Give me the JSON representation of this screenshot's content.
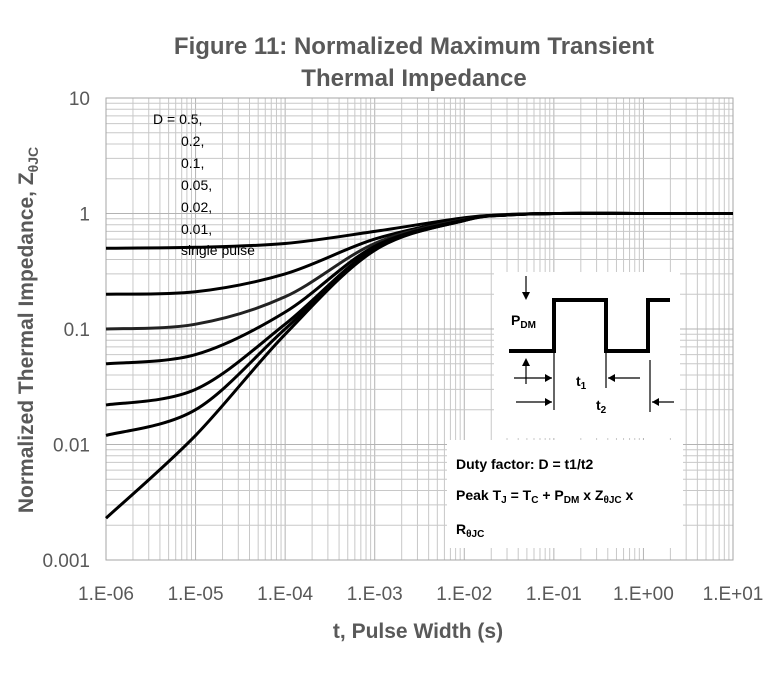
{
  "chart_data": {
    "type": "line",
    "title_line1": "Figure 11: Normalized Maximum Transient",
    "title_line2": "Thermal Impedance",
    "xlabel": "t, Pulse Width (s)",
    "ylabel_main": "Normalized Thermal Impedance, Z",
    "ylabel_sub": "θJC",
    "x_scale": "log",
    "y_scale": "log",
    "xlim": [
      1e-06,
      10
    ],
    "ylim": [
      0.001,
      10
    ],
    "grid": true,
    "x_ticks": [
      {
        "value": 1e-06,
        "label": "1.E-06"
      },
      {
        "value": 1e-05,
        "label": "1.E-05"
      },
      {
        "value": 0.0001,
        "label": "1.E-04"
      },
      {
        "value": 0.001,
        "label": "1.E-03"
      },
      {
        "value": 0.01,
        "label": "1.E-02"
      },
      {
        "value": 0.1,
        "label": "1.E-01"
      },
      {
        "value": 1,
        "label": "1.E+00"
      },
      {
        "value": 10,
        "label": "1.E+01"
      }
    ],
    "y_ticks": [
      {
        "value": 0.001,
        "label": "0.001"
      },
      {
        "value": 0.01,
        "label": "0.01"
      },
      {
        "value": 0.1,
        "label": "0.1"
      },
      {
        "value": 1,
        "label": "1"
      },
      {
        "value": 10,
        "label": "10"
      }
    ],
    "legend": [
      "D = 0.5,",
      "0.2,",
      "0.1,",
      "0.05,",
      "0.02,",
      "0.01,",
      "single pulse"
    ],
    "series": [
      {
        "name": "D = 0.5",
        "color": "#000000",
        "x": [
          1e-06,
          1e-05,
          0.0001,
          0.001,
          0.01,
          0.03,
          0.1,
          1,
          10
        ],
        "y": [
          0.5,
          0.51,
          0.55,
          0.7,
          0.92,
          0.98,
          1.0,
          1.0,
          1.0
        ]
      },
      {
        "name": "D = 0.2",
        "color": "#000000",
        "x": [
          1e-06,
          1e-05,
          0.0001,
          0.001,
          0.01,
          0.03,
          0.1,
          1,
          10
        ],
        "y": [
          0.2,
          0.21,
          0.3,
          0.6,
          0.9,
          0.97,
          1.0,
          1.0,
          1.0
        ]
      },
      {
        "name": "D = 0.1",
        "color": "#222222",
        "x": [
          1e-06,
          1e-05,
          0.0001,
          0.001,
          0.01,
          0.03,
          0.1,
          1,
          10
        ],
        "y": [
          0.1,
          0.11,
          0.19,
          0.55,
          0.89,
          0.97,
          1.0,
          1.0,
          1.0
        ]
      },
      {
        "name": "D = 0.05",
        "color": "#000000",
        "x": [
          1e-06,
          1e-05,
          0.0001,
          0.001,
          0.01,
          0.03,
          0.1,
          1,
          10
        ],
        "y": [
          0.05,
          0.06,
          0.14,
          0.52,
          0.88,
          0.97,
          1.0,
          1.0,
          1.0
        ]
      },
      {
        "name": "D = 0.02",
        "color": "#000000",
        "x": [
          1e-06,
          1e-05,
          0.0001,
          0.001,
          0.01,
          0.03,
          0.1,
          1,
          10
        ],
        "y": [
          0.022,
          0.03,
          0.11,
          0.5,
          0.88,
          0.97,
          1.0,
          1.0,
          1.0
        ]
      },
      {
        "name": "D = 0.01",
        "color": "#000000",
        "x": [
          1e-06,
          1e-05,
          0.0001,
          0.001,
          0.01,
          0.03,
          0.1,
          1,
          10
        ],
        "y": [
          0.012,
          0.02,
          0.1,
          0.49,
          0.87,
          0.97,
          1.0,
          1.0,
          1.0
        ]
      },
      {
        "name": "single pulse",
        "color": "#000000",
        "x": [
          1e-06,
          1e-05,
          0.0001,
          0.001,
          0.01,
          0.03,
          0.1,
          1,
          10
        ],
        "y": [
          0.0023,
          0.012,
          0.09,
          0.48,
          0.87,
          0.97,
          1.0,
          1.0,
          1.0
        ]
      }
    ],
    "inset": {
      "pdm_main": "P",
      "pdm_sub": "DM",
      "t1_main": "t",
      "t1_sub": "1",
      "t2_main": "t",
      "t2_sub": "2",
      "duty_text": "Duty factor: D = t1/t2",
      "peak_parts": [
        "Peak T",
        "J",
        " = T",
        "C",
        " + P",
        "DM",
        " x Z",
        "θJC",
        " x"
      ],
      "peak_line2_main": "R",
      "peak_line2_sub": "θJC"
    }
  }
}
